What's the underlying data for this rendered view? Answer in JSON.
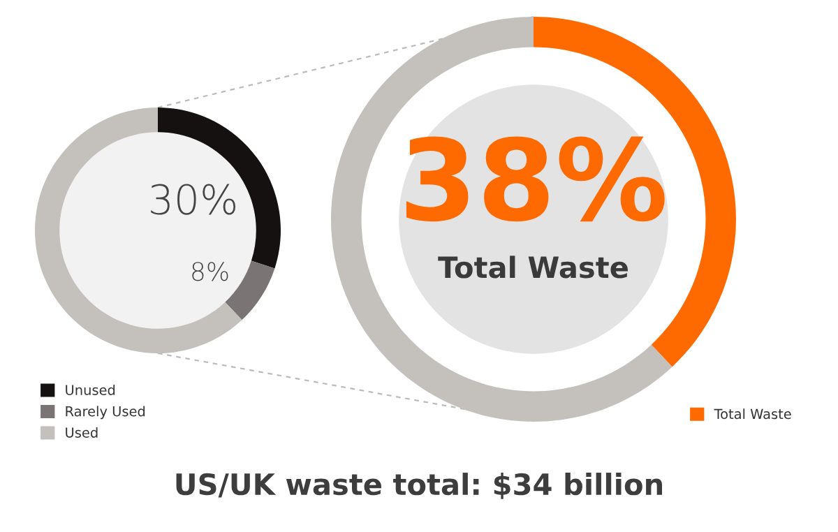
{
  "chart_data": [
    {
      "type": "donut",
      "categories": [
        "Unused",
        "Rarely Used",
        "Used"
      ],
      "values": [
        30,
        8,
        62
      ],
      "colors": [
        "#141110",
        "#7a7574",
        "#c4c0bc"
      ],
      "value_labels": [
        "30%",
        "8%",
        null
      ],
      "legend": "bottom left"
    },
    {
      "type": "donut",
      "categories": [
        "Total Waste",
        null
      ],
      "values": [
        38,
        62
      ],
      "colors": [
        "#ff6a00",
        "#c4c0bc"
      ],
      "value_labels": [
        "38%",
        null
      ],
      "annotations": [
        "Total Waste"
      ],
      "legend": "bottom right",
      "title": "US/UK waste total: $34 billion"
    }
  ]
}
